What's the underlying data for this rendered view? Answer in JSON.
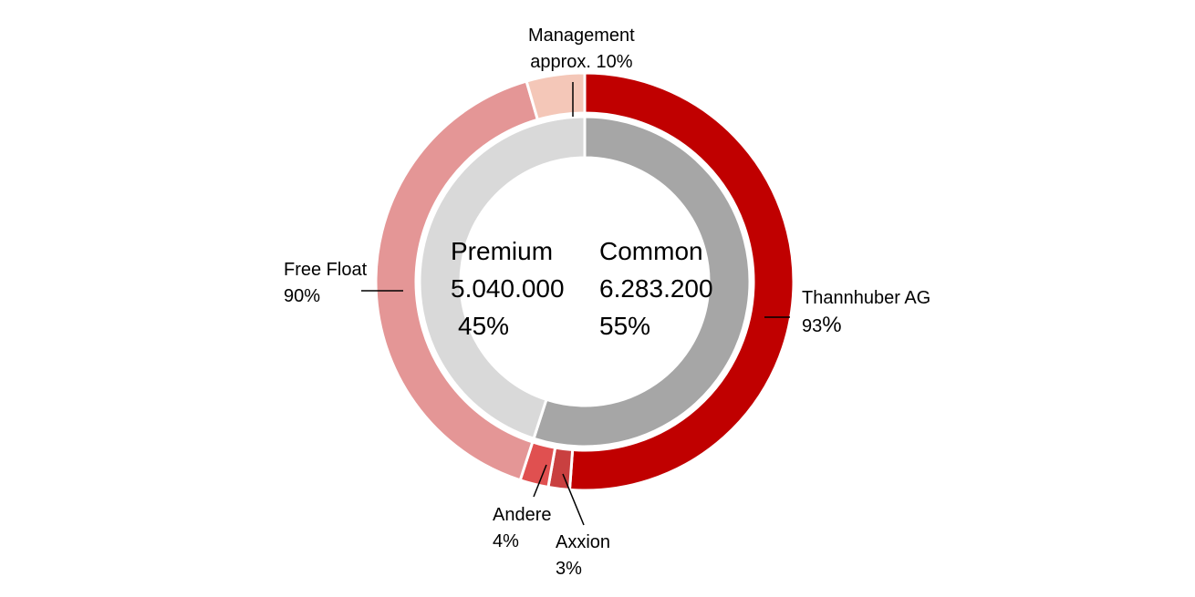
{
  "chart_data": {
    "type": "pie",
    "inner_ring": [
      {
        "name": "Common",
        "shares": "6.283.200",
        "percent_label": "55%",
        "value": 55,
        "color": "#a6a6a6"
      },
      {
        "name": "Premium",
        "shares": "5.040.000",
        "percent_label": "45%",
        "value": 45,
        "color": "#d9d9d9"
      }
    ],
    "outer_ring": [
      {
        "name": "Thannhuber AG",
        "percent_number": "93",
        "percent_sign": "%",
        "value": 51.15,
        "color": "#c00000"
      },
      {
        "name": "Axxion",
        "percent_label": "3%",
        "value": 1.65,
        "color": "#c94040"
      },
      {
        "name": "Andere",
        "percent_label": "4%",
        "value": 2.2,
        "color": "#e05050"
      },
      {
        "name": "Free Float",
        "percent_label": "90%",
        "value": 40.5,
        "color": "#e49696"
      },
      {
        "name": "Management",
        "percent_label": "approx. 10%",
        "value": 4.5,
        "color": "#f4c7b8"
      }
    ]
  }
}
